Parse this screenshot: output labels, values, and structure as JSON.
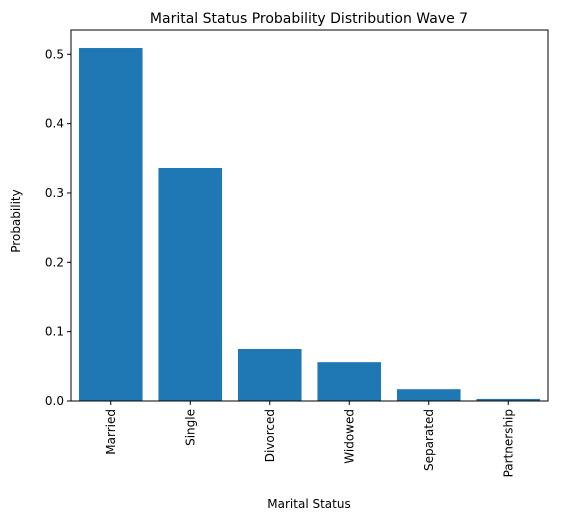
{
  "chart_data": {
    "type": "bar",
    "title": "Marital Status Probability Distribution Wave 7",
    "xlabel": "Marital Status",
    "ylabel": "Probability",
    "categories": [
      "Married",
      "Single",
      "Divorced",
      "Widowed",
      "Separated",
      "Partnership"
    ],
    "values": [
      0.509,
      0.336,
      0.075,
      0.056,
      0.017,
      0.003
    ],
    "ylim": [
      0,
      0.535
    ],
    "yticks": [
      0.0,
      0.1,
      0.2,
      0.3,
      0.4,
      0.5
    ],
    "ytick_labels": [
      "0.0",
      "0.1",
      "0.2",
      "0.3",
      "0.4",
      "0.5"
    ],
    "bar_color": "#1f77b4",
    "grid": false,
    "legend": "none"
  }
}
